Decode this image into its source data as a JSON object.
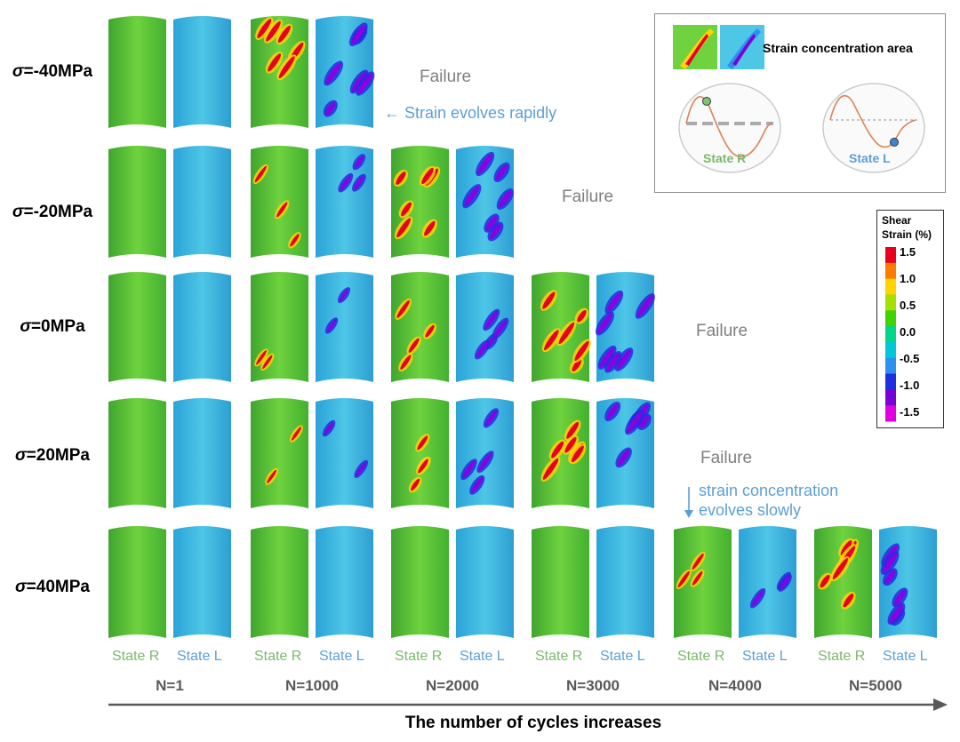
{
  "row_labels": [
    {
      "sigma": "σ",
      "value": "=-40MPa"
    },
    {
      "sigma": "σ",
      "value": "=-20MPa"
    },
    {
      "sigma": "σ",
      "value": "=0MPa"
    },
    {
      "sigma": "σ",
      "value": "=20MPa"
    },
    {
      "sigma": "σ",
      "value": "=40MPa"
    }
  ],
  "failure_label": "Failure",
  "state_labels": {
    "r": "State R",
    "l": "State L"
  },
  "cycle_labels": [
    "N=1",
    "N=1000",
    "N=2000",
    "N=3000",
    "N=4000",
    "N=5000"
  ],
  "bottom_caption": "The number of cycles increases",
  "annotations": {
    "rapid": "Strain evolves rapidly",
    "slow_line1": "strain concentration",
    "slow_line2": "evolves slowly"
  },
  "inset": {
    "title": "Strain concentration area",
    "state_r": "State R",
    "state_l": "State L"
  },
  "legend": {
    "title_line1": "Shear",
    "title_line2": "Strain (%)",
    "ticks": [
      "1.5",
      "1.0",
      "0.5",
      "0.0",
      "-0.5",
      "-1.0",
      "-1.5"
    ],
    "colors": [
      "#e8001c",
      "#ff7a00",
      "#ffd400",
      "#a6e000",
      "#3fd400",
      "#00d68a",
      "#00c8d8",
      "#2d8ff0",
      "#1e2fe0",
      "#7a00d8",
      "#e000e0"
    ]
  },
  "grid_rows_available_columns": [
    2,
    3,
    4,
    4,
    6
  ]
}
